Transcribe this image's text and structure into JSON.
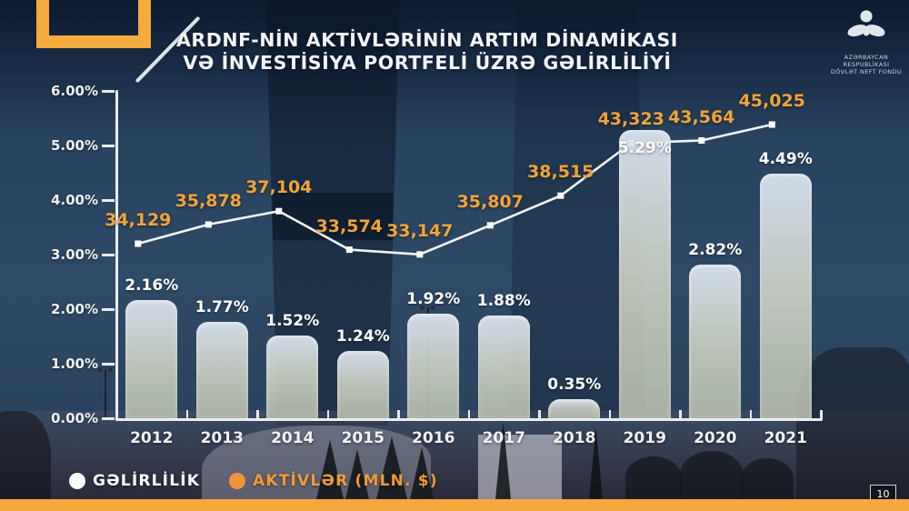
{
  "slide": {
    "title_line1": "ARDNF-NİN AKTİVLƏRİNİN ARTIM DİNAMİKASI",
    "title_line2": "VƏ İNVESTİSİYA PORTFELİ ÜZRƏ GƏLİRLİLİYİ",
    "page_number": "10"
  },
  "logo": {
    "org_line1": "AZƏRBAYCAN RESPUBLİKASI",
    "org_line2": "DÖVLƏT NEFT FONDU",
    "icon": "sofaz-emblem-icon"
  },
  "legend": {
    "items": [
      {
        "label": "GƏLİRLİLİK",
        "color": "#ffffff"
      },
      {
        "label": "AKTİVLƏR (MLN. $)",
        "color": "#ef9a35"
      }
    ]
  },
  "colors": {
    "background_navy": "#2e4a66",
    "accent_orange": "#f5ab3d",
    "line_white": "#f2f4f7",
    "line_label_orange": "#f3a338",
    "bar_fill_top": "#dbe4f1",
    "bar_fill_bottom": "#c7ccb5"
  },
  "chart_data": {
    "type": "combo",
    "categories": [
      "2012",
      "2013",
      "2014",
      "2015",
      "2016",
      "2017",
      "2018",
      "2019",
      "2020",
      "2021"
    ],
    "series": [
      {
        "name": "GƏLİRLİLİK",
        "type": "bar",
        "unit": "%",
        "values": [
          2.16,
          1.77,
          1.52,
          1.24,
          1.92,
          1.88,
          0.35,
          5.29,
          2.82,
          4.49
        ],
        "labels": [
          "2.16%",
          "1.77%",
          "1.52%",
          "1.24%",
          "1.92%",
          "1.88%",
          "0.35%",
          "5.29%",
          "2.82%",
          "4.49%"
        ]
      },
      {
        "name": "AKTİVLƏR (MLN. $)",
        "type": "line",
        "unit": "MLN. $",
        "values": [
          34129,
          35878,
          37104,
          33574,
          33147,
          35807,
          38515,
          43323,
          43564,
          45025
        ],
        "labels": [
          "34,129",
          "35,878",
          "37,104",
          "33,574",
          "33,147",
          "35,807",
          "38,515",
          "43,323",
          "43,564",
          "45,025"
        ]
      }
    ],
    "y_axis": {
      "ticks_top_to_bottom": [
        "6.00%",
        "5.00%",
        "4.00%",
        "3.00%",
        "2.00%",
        "1.00%",
        "0.00%"
      ],
      "min": 0,
      "max": 6,
      "unit": "%"
    },
    "grid": false,
    "legend_position": "bottom-left"
  }
}
